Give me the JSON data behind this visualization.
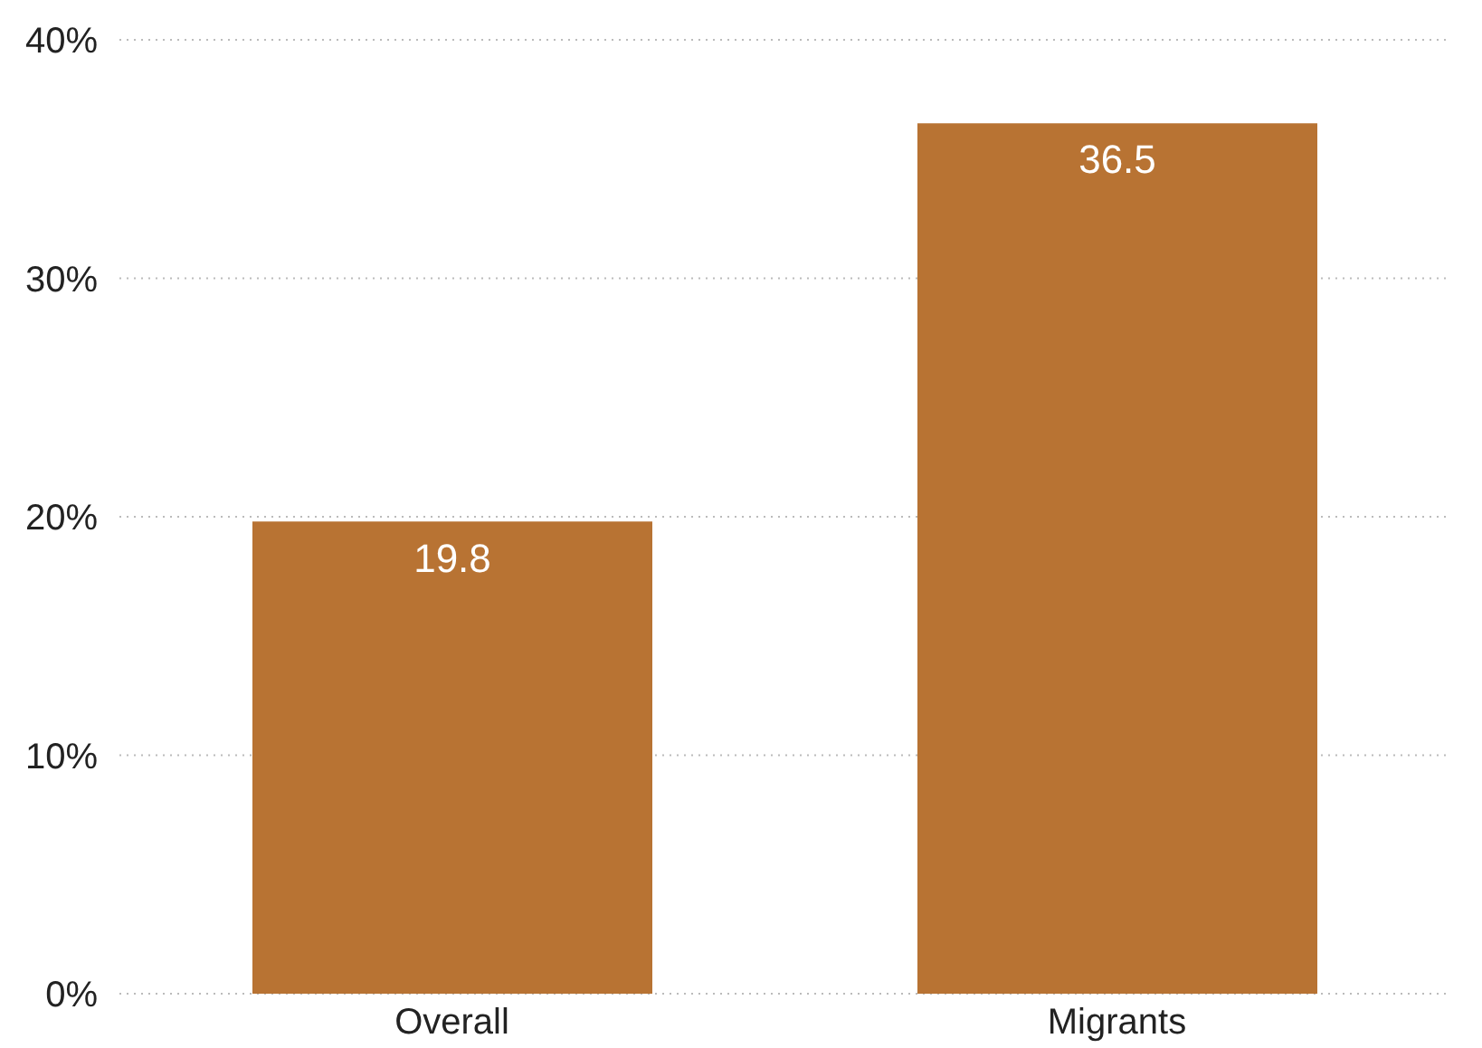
{
  "chart_data": {
    "type": "bar",
    "categories": [
      "Overall",
      "Migrants"
    ],
    "values": [
      19.8,
      36.5
    ],
    "color": "#b87333",
    "ylim": [
      0,
      40
    ],
    "yticks": [
      {
        "value": 0,
        "label": "0%"
      },
      {
        "value": 10,
        "label": "10%"
      },
      {
        "value": 20,
        "label": "20%"
      },
      {
        "value": 30,
        "label": "30%"
      },
      {
        "value": 40,
        "label": "40%"
      }
    ],
    "grid": "y",
    "data_labels": true
  }
}
